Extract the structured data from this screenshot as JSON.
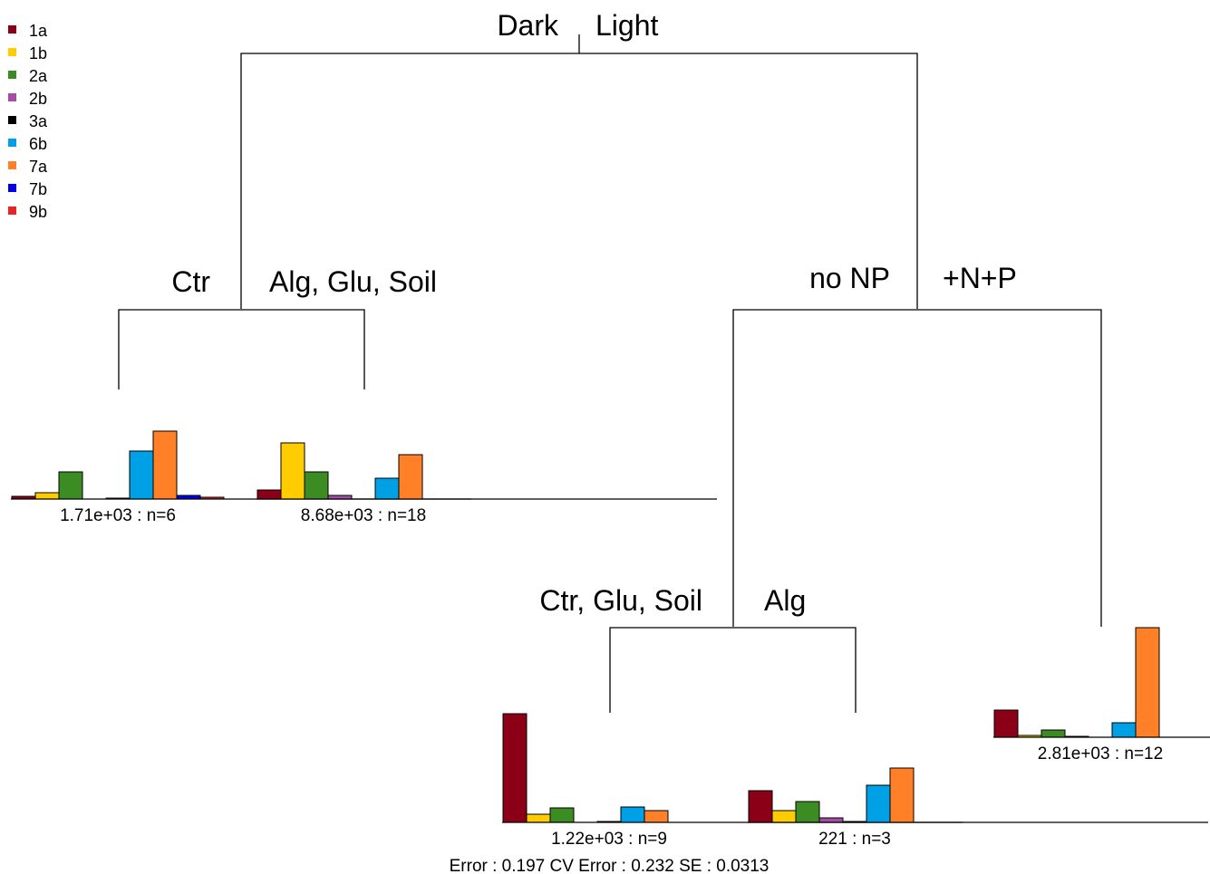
{
  "legend": [
    {
      "label": "1a",
      "color": "#8B0016"
    },
    {
      "label": "1b",
      "color": "#FFCC00"
    },
    {
      "label": "2a",
      "color": "#3A8C23"
    },
    {
      "label": "2b",
      "color": "#A64CA6"
    },
    {
      "label": "3a",
      "color": "#000000"
    },
    {
      "label": "6b",
      "color": "#00A0E6"
    },
    {
      "label": "7a",
      "color": "#FF8026"
    },
    {
      "label": "7b",
      "color": "#0000E6"
    },
    {
      "label": "9b",
      "color": "#E62626"
    }
  ],
  "splits": {
    "root_left": "Dark",
    "root_right": "Light",
    "dark_left": "Ctr",
    "dark_right": "Alg, Glu, Soil",
    "light_left": "no NP",
    "light_right": "+N+P",
    "nonp_left": "Ctr, Glu, Soil",
    "nonp_right": "Alg"
  },
  "chart_data": {
    "type": "bar",
    "categories": [
      "1a",
      "1b",
      "2a",
      "2b",
      "3a",
      "6b",
      "7a",
      "7b",
      "9b"
    ],
    "leaves": [
      {
        "id": "leaf-dark-ctr",
        "label": "1.71e+03 : n=6",
        "values": [
          0.03,
          0.07,
          0.3,
          0.0,
          0.01,
          0.53,
          0.75,
          0.04,
          0.02
        ]
      },
      {
        "id": "leaf-dark-alg-glu-soil",
        "label": "8.68e+03 : n=18",
        "values": [
          0.1,
          0.62,
          0.3,
          0.04,
          0.0,
          0.23,
          0.49,
          0.0,
          0.0
        ]
      },
      {
        "id": "leaf-light-nonp-ctr-glu-soil",
        "label": "1.22e+03 : n=9",
        "values": [
          1.2,
          0.09,
          0.16,
          0.0,
          0.01,
          0.17,
          0.13,
          0.0,
          0.0
        ]
      },
      {
        "id": "leaf-light-nonp-alg",
        "label": "221 : n=3",
        "values": [
          0.35,
          0.13,
          0.23,
          0.05,
          0.01,
          0.41,
          0.6,
          0.0,
          0.0
        ]
      },
      {
        "id": "leaf-light-np",
        "label": "2.81e+03 : n=12",
        "values": [
          0.3,
          0.02,
          0.08,
          0.01,
          0.0,
          0.16,
          1.21,
          0.0,
          0.0
        ]
      }
    ]
  },
  "footer": "Error :  0.197   CV Error :  0.232   SE :  0.0313"
}
